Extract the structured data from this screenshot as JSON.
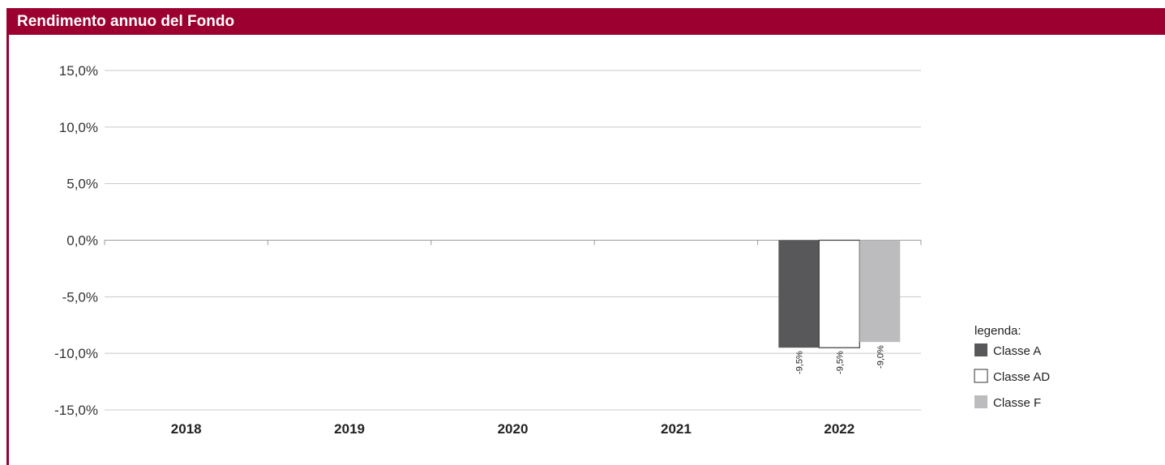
{
  "header": {
    "title": "Rendimento annuo del Fondo"
  },
  "colors": {
    "accent": "#9b0030",
    "grid": "#c8c8c8",
    "axis": "#9a9a9a"
  },
  "chart_data": {
    "type": "bar",
    "categories": [
      "2018",
      "2019",
      "2020",
      "2021",
      "2022"
    ],
    "series": [
      {
        "name": "Classe A",
        "color": "#58585a",
        "values": [
          null,
          null,
          null,
          null,
          -9.5
        ],
        "labels": [
          "",
          "",
          "",
          "",
          "-9,5%"
        ]
      },
      {
        "name": "Classe AD",
        "color": "#ffffff",
        "values": [
          null,
          null,
          null,
          null,
          -9.5
        ],
        "labels": [
          "",
          "",
          "",
          "",
          "-9,5%"
        ]
      },
      {
        "name": "Classe F",
        "color": "#bcbcbe",
        "values": [
          null,
          null,
          null,
          null,
          -9.0
        ],
        "labels": [
          "",
          "",
          "",
          "",
          "-9,0%"
        ]
      }
    ],
    "ylim": [
      -15,
      15
    ],
    "yticks": [
      15,
      10,
      5,
      0,
      -5,
      -10,
      -15
    ],
    "ytick_labels": [
      "15,0%",
      "10,0%",
      "5,0%",
      "0,0%",
      "-5,0%",
      "-10,0%",
      "-15,0%"
    ],
    "title": "",
    "xlabel": "",
    "ylabel": "",
    "grid": true,
    "legend": {
      "title": "legenda:",
      "position": "right"
    }
  }
}
